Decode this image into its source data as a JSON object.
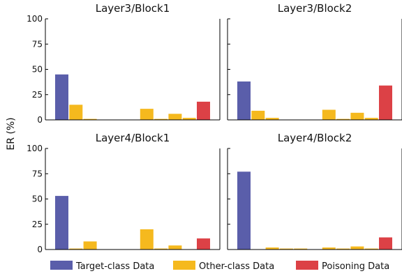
{
  "chart_data": {
    "type": "bar",
    "ylabel": "ER (%)",
    "ylim": [
      0,
      100
    ],
    "yticks": [
      0,
      25,
      50,
      75,
      100
    ],
    "grid": false,
    "legend_position": "bottom",
    "series_colors": {
      "Target-class Data": "#5a5eaa",
      "Other-class Data": "#f5b91e",
      "Poisoning Data": "#dc4146"
    },
    "legend": [
      {
        "name": "Target-class Data",
        "color": "#5a5eaa"
      },
      {
        "name": "Other-class Data",
        "color": "#f5b91e"
      },
      {
        "name": "Poisoning Data",
        "color": "#dc4146"
      }
    ],
    "panels": [
      {
        "title": "Layer3/Block1",
        "bars": [
          {
            "series": "Target-class Data",
            "value": 45
          },
          {
            "series": "Other-class Data",
            "value": 15
          },
          {
            "series": "Other-class Data",
            "value": 1
          },
          {
            "series": "Other-class Data",
            "value": 0
          },
          {
            "series": "Other-class Data",
            "value": 0
          },
          {
            "series": "Other-class Data",
            "value": 0
          },
          {
            "series": "Other-class Data",
            "value": 11
          },
          {
            "series": "Other-class Data",
            "value": 1
          },
          {
            "series": "Other-class Data",
            "value": 6
          },
          {
            "series": "Other-class Data",
            "value": 2
          },
          {
            "series": "Poisoning Data",
            "value": 18
          }
        ]
      },
      {
        "title": "Layer3/Block2",
        "bars": [
          {
            "series": "Target-class Data",
            "value": 38
          },
          {
            "series": "Other-class Data",
            "value": 9
          },
          {
            "series": "Other-class Data",
            "value": 2
          },
          {
            "series": "Other-class Data",
            "value": 0
          },
          {
            "series": "Other-class Data",
            "value": 0
          },
          {
            "series": "Other-class Data",
            "value": 0
          },
          {
            "series": "Other-class Data",
            "value": 10
          },
          {
            "series": "Other-class Data",
            "value": 1
          },
          {
            "series": "Other-class Data",
            "value": 7
          },
          {
            "series": "Other-class Data",
            "value": 2
          },
          {
            "series": "Poisoning Data",
            "value": 34
          }
        ]
      },
      {
        "title": "Layer4/Block1",
        "bars": [
          {
            "series": "Target-class Data",
            "value": 53
          },
          {
            "series": "Other-class Data",
            "value": 1
          },
          {
            "series": "Other-class Data",
            "value": 8
          },
          {
            "series": "Other-class Data",
            "value": 0
          },
          {
            "series": "Other-class Data",
            "value": 0
          },
          {
            "series": "Other-class Data",
            "value": 0
          },
          {
            "series": "Other-class Data",
            "value": 20
          },
          {
            "series": "Other-class Data",
            "value": 1
          },
          {
            "series": "Other-class Data",
            "value": 4
          },
          {
            "series": "Other-class Data",
            "value": 0
          },
          {
            "series": "Poisoning Data",
            "value": 11
          }
        ]
      },
      {
        "title": "Layer4/Block2",
        "bars": [
          {
            "series": "Target-class Data",
            "value": 77
          },
          {
            "series": "Other-class Data",
            "value": 0
          },
          {
            "series": "Other-class Data",
            "value": 2
          },
          {
            "series": "Other-class Data",
            "value": 1
          },
          {
            "series": "Other-class Data",
            "value": 1
          },
          {
            "series": "Other-class Data",
            "value": 0
          },
          {
            "series": "Other-class Data",
            "value": 2
          },
          {
            "series": "Other-class Data",
            "value": 1
          },
          {
            "series": "Other-class Data",
            "value": 3
          },
          {
            "series": "Other-class Data",
            "value": 1
          },
          {
            "series": "Poisoning Data",
            "value": 12
          }
        ]
      }
    ]
  }
}
